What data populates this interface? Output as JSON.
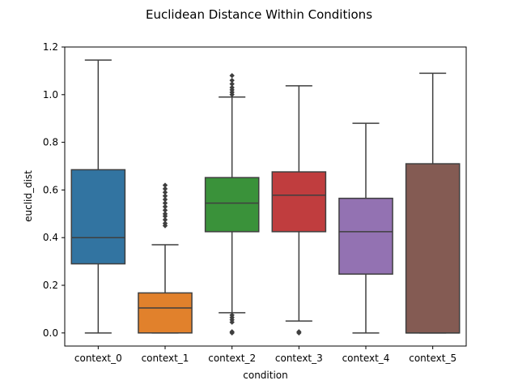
{
  "chart_data": {
    "type": "box",
    "title": "Euclidean Distance Within Conditions",
    "xlabel": "condition",
    "ylabel": "euclid_dist",
    "ylim": [
      -0.055,
      1.2
    ],
    "yticks": [
      "0.0",
      "0.2",
      "0.4",
      "0.6",
      "0.8",
      "1.0",
      "1.2"
    ],
    "ytick_values": [
      0.0,
      0.2,
      0.4,
      0.6,
      0.8,
      1.0,
      1.2
    ],
    "grid": false,
    "line_color": "#3f3f3f",
    "categories": [
      "context_0",
      "context_1",
      "context_2",
      "context_3",
      "context_4",
      "context_5"
    ],
    "boxes": [
      {
        "name": "context_0",
        "color": "#3274a1",
        "whislo": 0.0,
        "q1": 0.29,
        "median": 0.4,
        "q3": 0.685,
        "whishi": 1.145,
        "outliers": []
      },
      {
        "name": "context_1",
        "color": "#e1812c",
        "whislo": 0.0,
        "q1": 0.0,
        "median": 0.105,
        "q3": 0.168,
        "whishi": 0.37,
        "outliers": [
          0.45,
          0.46,
          0.475,
          0.49,
          0.5,
          0.515,
          0.53,
          0.545,
          0.56,
          0.575,
          0.59,
          0.605,
          0.62
        ]
      },
      {
        "name": "context_2",
        "color": "#3a923a",
        "whislo": 0.085,
        "q1": 0.425,
        "median": 0.545,
        "q3": 0.652,
        "whishi": 0.99,
        "outliers": [
          0.0,
          0.005,
          0.045,
          0.055,
          0.065,
          0.075,
          1.0,
          1.01,
          1.02,
          1.03,
          1.045,
          1.06,
          1.08
        ]
      },
      {
        "name": "context_3",
        "color": "#c03d3e",
        "whislo": 0.05,
        "q1": 0.425,
        "median": 0.578,
        "q3": 0.676,
        "whishi": 1.037,
        "outliers": [
          0.0,
          0.005
        ]
      },
      {
        "name": "context_4",
        "color": "#9372b2",
        "whislo": 0.0,
        "q1": 0.247,
        "median": 0.425,
        "q3": 0.565,
        "whishi": 0.88,
        "outliers": []
      },
      {
        "name": "context_5",
        "color": "#845b53",
        "whislo": 0.0,
        "q1": 0.0,
        "median": 0.0,
        "q3": 0.71,
        "whishi": 1.09,
        "outliers": []
      }
    ]
  }
}
